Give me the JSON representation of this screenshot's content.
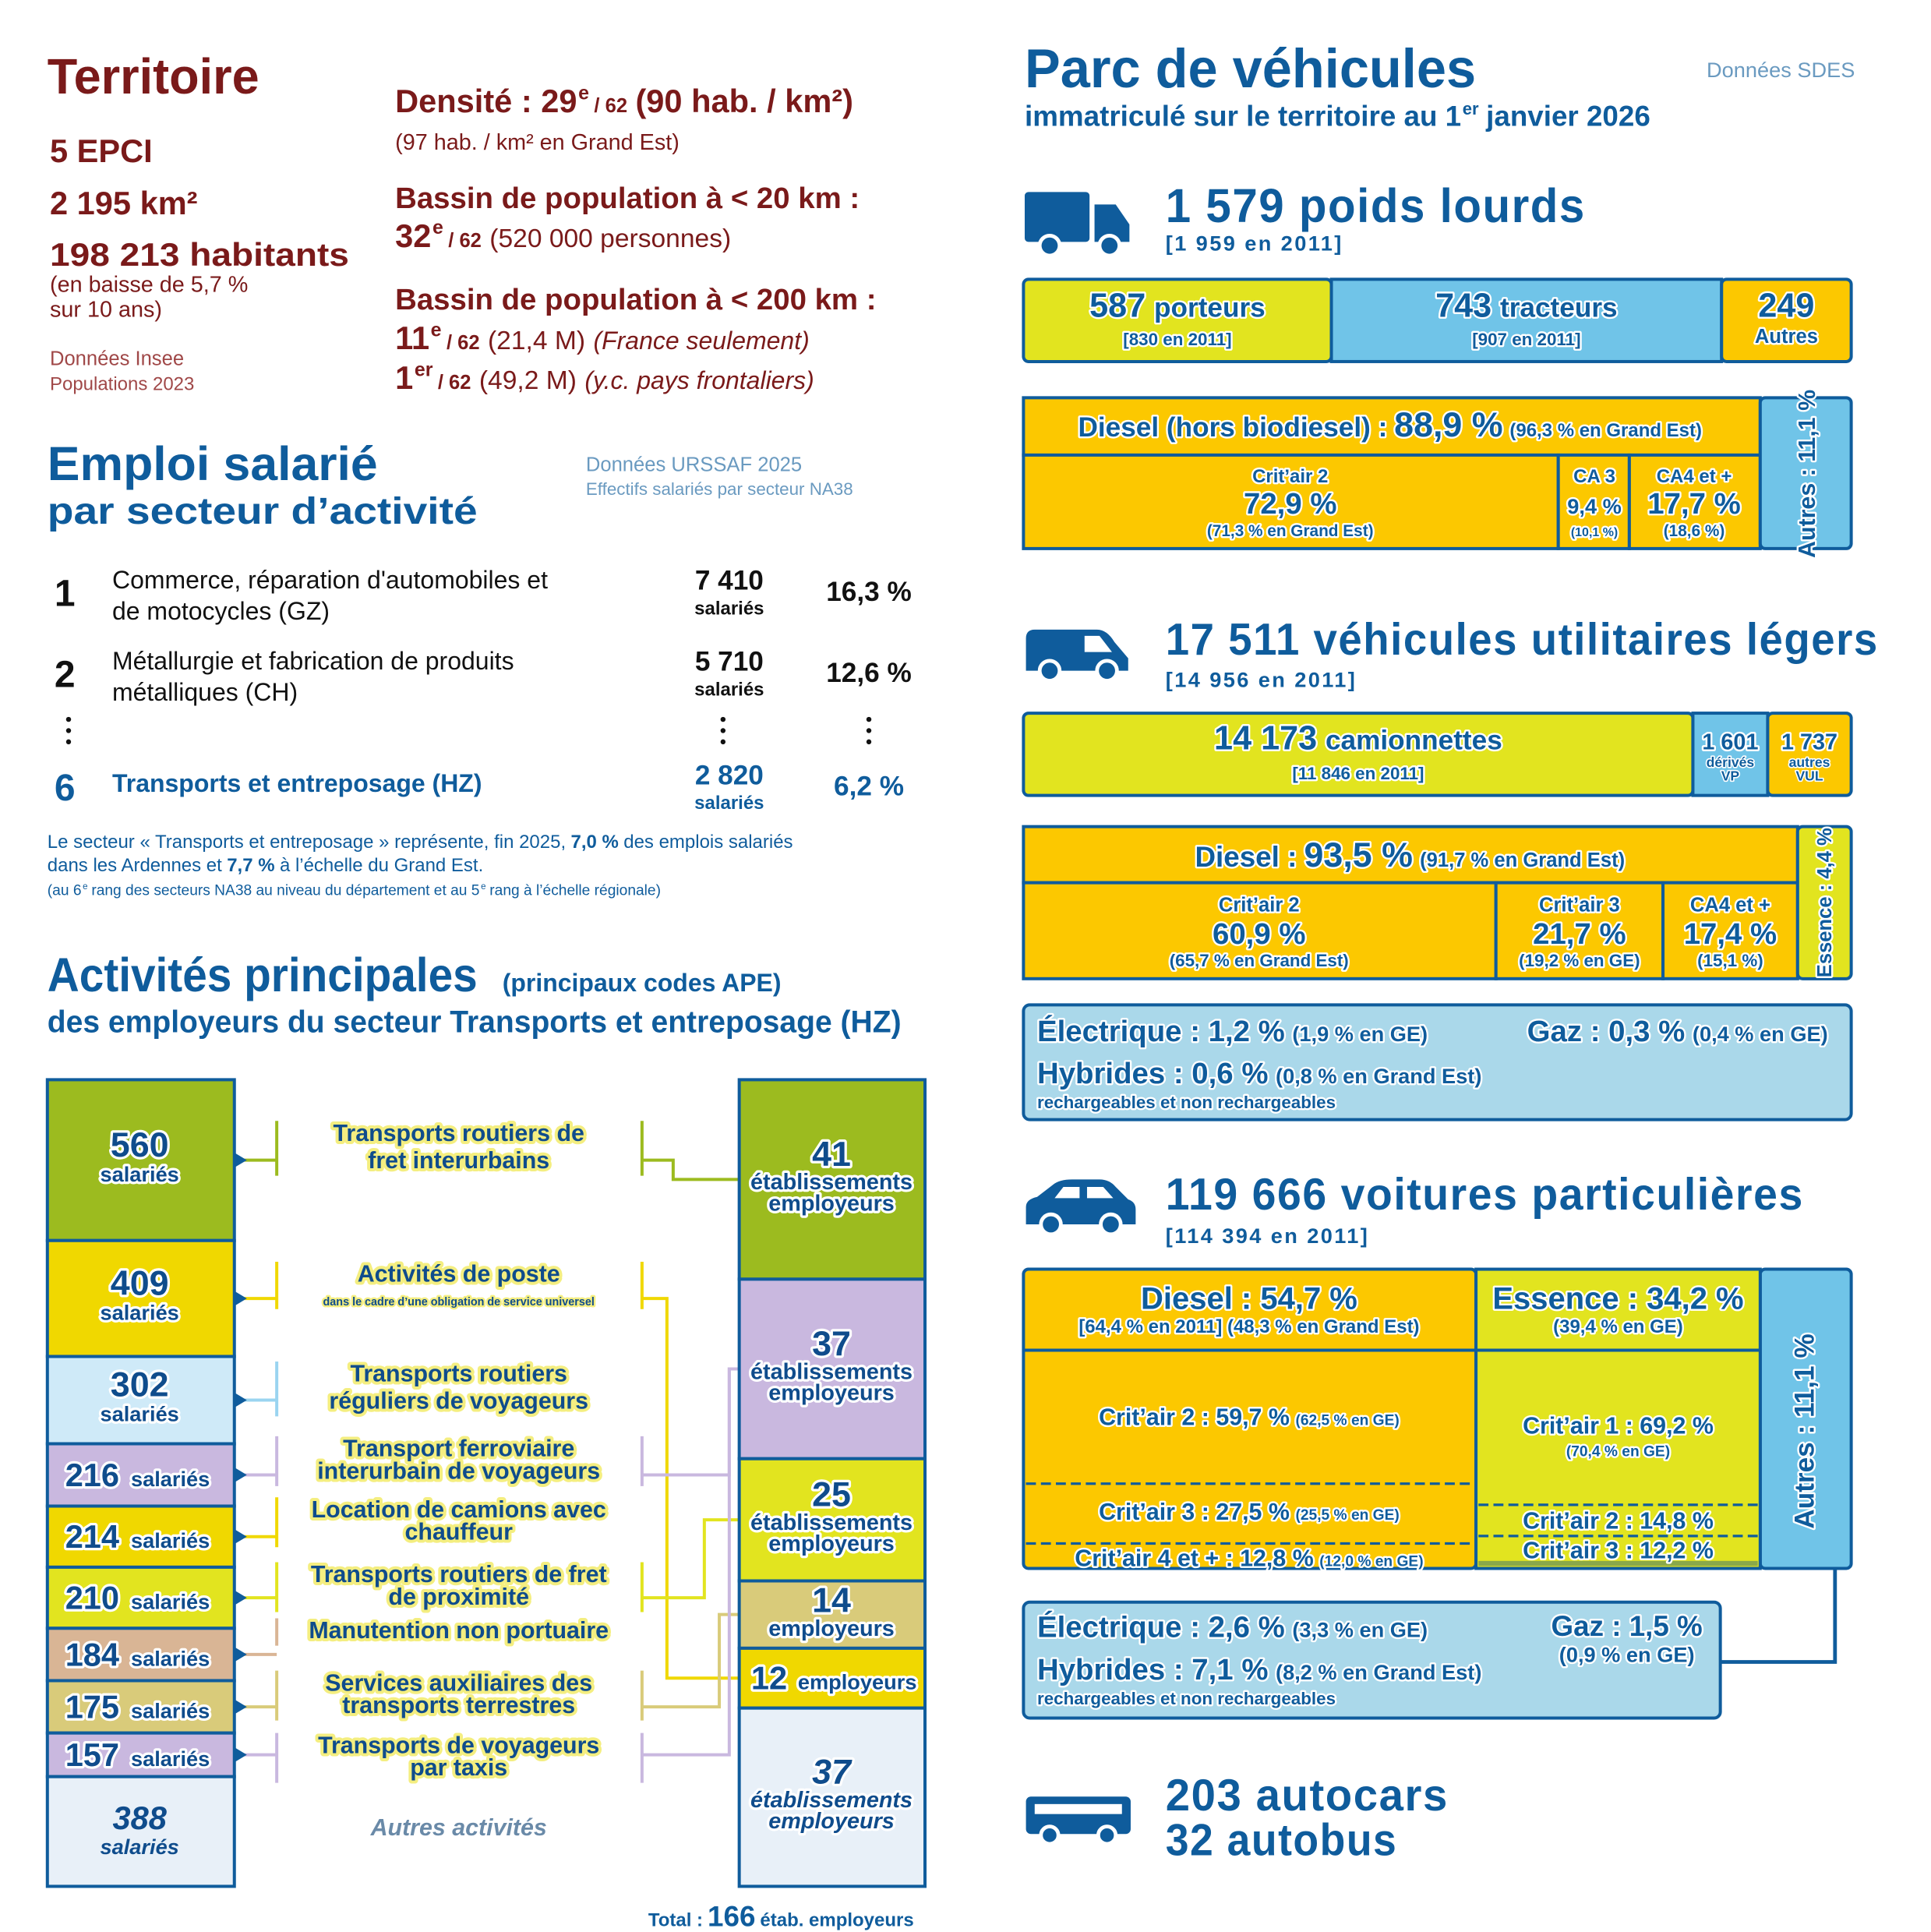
{
  "territoire": {
    "title": "Territoire",
    "epci": "5 EPCI",
    "surface": "2 195 km²",
    "habitants": "198 213 habitants",
    "evolution": [
      "(en baisse de 5,7 %",
      "sur 10 ans)"
    ],
    "source": [
      "Données Insee",
      "Populations 2023"
    ],
    "densite": [
      "Densité : 29",
      "e",
      "/ 62",
      "(90 hab. / km²)"
    ],
    "densite_ge": "(97 hab. / km² en Grand Est)",
    "bassin20": {
      "label": "Bassin de population à < 20 km :",
      "rang": [
        "32",
        "e",
        "/ 62",
        "(520 000 personnes)"
      ]
    },
    "bassin200": {
      "label": "Bassin de population à < 200 km :",
      "rang_fr": [
        "11",
        "e",
        "/ 62",
        "(21,4 M)",
        "(France seulement)"
      ],
      "rang_all": [
        "1",
        "er",
        "/ 62",
        "(49,2 M)",
        "(y.c. pays frontaliers)"
      ]
    }
  },
  "emploi": {
    "title": "Emploi salarié",
    "subtitle": "par secteur d’activité",
    "source": [
      "Données URSSAF 2025",
      "Effectifs salariés par secteur NA38"
    ],
    "rows": [
      {
        "rank": "1",
        "label": [
          "Commerce, réparation d'automobiles et",
          "de motocycles (GZ)"
        ],
        "value": "7 410",
        "unit": "salariés",
        "share": "16,3 %"
      },
      {
        "rank": "2",
        "label": [
          "Métallurgie et fabrication de produits",
          "métalliques (CH)"
        ],
        "value": "5 710",
        "unit": "salariés",
        "share": "12,6 %"
      },
      {
        "rank": "6",
        "label": [
          "Transports et entreposage (HZ)"
        ],
        "value": "2 820",
        "unit": "salariés",
        "share": "6,2 %"
      }
    ],
    "note": [
      [
        "Le secteur « Transports et entreposage » représente, fin 2025,",
        "7,0 %",
        "des emplois salariés"
      ],
      [
        "dans les Ardennes et",
        "7,7 %",
        "à l’échelle du Grand Est."
      ]
    ],
    "note_small": [
      "(au 6",
      "e",
      "rang des secteurs NA38 au niveau du département et au 5",
      "e",
      "rang à l’échelle régionale)"
    ]
  },
  "activites": {
    "title": "Activités principales",
    "title_note": "(principaux codes APE)",
    "subtitle": "des employeurs du secteur Transports et entreposage (HZ)",
    "items": [
      {
        "salaries": "560",
        "unit": "salariés",
        "label": [
          "Transports routiers de",
          "fret interurbains"
        ]
      },
      {
        "salaries": "409",
        "unit": "salariés",
        "label": [
          "Activités de poste"
        ],
        "note": "dans le cadre d’une obligation de service universel"
      },
      {
        "salaries": "302",
        "unit": "salariés",
        "label": [
          "Transports routiers",
          "réguliers de voyageurs"
        ]
      },
      {
        "salaries": "216",
        "unit": "salariés",
        "label": [
          "Transport ferroviaire",
          "interurbain de voyageurs"
        ]
      },
      {
        "salaries": "214",
        "unit": "salariés",
        "label": [
          "Location de camions avec",
          "chauffeur"
        ]
      },
      {
        "salaries": "210",
        "unit": "salariés",
        "label": [
          "Transports routiers de fret",
          "de proximité"
        ]
      },
      {
        "salaries": "184",
        "unit": "salariés",
        "label": [
          "Manutention non portuaire"
        ]
      },
      {
        "salaries": "175",
        "unit": "salariés",
        "label": [
          "Services auxiliaires des",
          "transports terrestres"
        ]
      },
      {
        "salaries": "157",
        "unit": "salariés",
        "label": [
          "Transports de voyageurs",
          "par taxis"
        ]
      }
    ],
    "autres": {
      "salaries": "388",
      "unit": "salariés",
      "label": "Autres activités"
    },
    "etablissements": [
      {
        "value": "41",
        "unit": [
          "établissements",
          "employeurs"
        ]
      },
      {
        "value": "37",
        "unit": [
          "établissements",
          "employeurs"
        ]
      },
      {
        "value": "25",
        "unit": [
          "établissements",
          "employeurs"
        ]
      },
      {
        "value": "14",
        "unit": [
          "employeurs"
        ]
      },
      {
        "value": "12",
        "unit": [
          "employeurs"
        ]
      },
      {
        "value": "37",
        "unit": [
          "établissements",
          "employeurs"
        ]
      }
    ],
    "total": [
      "Total :",
      "166",
      "étab. employeurs"
    ]
  },
  "parc": {
    "title": "Parc de véhicules",
    "subtitle": [
      "immatriculé sur le territoire au 1",
      "er",
      "janvier 2026"
    ],
    "source": "Données SDES",
    "pl": {
      "title": "1 579 poids lourds",
      "ref": "[1 959 en 2011]",
      "split": [
        {
          "value": "587",
          "label": "porteurs",
          "ref": "[830 en 2011]"
        },
        {
          "value": "743",
          "label": "tracteurs",
          "ref": "[907 en 2011]"
        },
        {
          "value": "249",
          "label": "Autres"
        }
      ],
      "diesel": [
        "Diesel (hors biodiesel) :",
        "88,9 %",
        "(96,3 % en Grand Est)"
      ],
      "autres": "Autres : 11,1 %",
      "critair": [
        {
          "label": "Crit’air 2",
          "value": "72,9 %",
          "ref": "(71,3 % en Grand Est)"
        },
        {
          "label": "CA 3",
          "value": "9,4 %",
          "ref": "(10,1 %)"
        },
        {
          "label": "CA4 et +",
          "value": "17,7 %",
          "ref": "(18,6 %)"
        }
      ]
    },
    "vul": {
      "title": "17 511 véhicules utilitaires légers",
      "ref": "[14 956 en 2011]",
      "split": [
        {
          "value": "14 173",
          "label": [
            "camionnettes"
          ],
          "ref": "[11 846 en 2011]"
        },
        {
          "value": "1 601",
          "label": [
            "dérivés",
            "VP"
          ]
        },
        {
          "value": "1 737",
          "label": [
            "autres",
            "VUL"
          ]
        }
      ],
      "diesel": [
        "Diesel :",
        "93,5 %",
        "(91,7 % en Grand Est)"
      ],
      "autres": "Essence : 4,4 %",
      "critair": [
        {
          "label": "Crit’air 2",
          "value": "60,9 %",
          "ref": "(65,7 % en Grand Est)"
        },
        {
          "label": "Crit’air 3",
          "value": "21,7 %",
          "ref": "(19,2 % en GE)"
        },
        {
          "label": "CA4 et +",
          "value": "17,4 %",
          "ref": "(15,1 %)"
        }
      ],
      "electrique": [
        "Électrique : 1,2 %",
        "(1,9 % en GE)"
      ],
      "gaz": [
        "Gaz : 0,3 %",
        "(0,4 % en GE)"
      ],
      "hybrides": [
        "Hybrides : 0,6 %",
        "(0,8 % en Grand Est)"
      ],
      "hybrides_note": "rechargeables et non rechargeables"
    },
    "vp": {
      "title": "119 666 voitures particulières",
      "ref": "[114 394 en 2011]",
      "diesel": [
        "Diesel : 54,7 %",
        "[64,4 % en 2011]  (48,3 % en Grand Est)"
      ],
      "essence": [
        "Essence : 34,2 %",
        "(39,4 % en GE)"
      ],
      "autres": "Autres : 11,1 %",
      "diesel_critair": [
        [
          "Crit’air 2 : 59,7 %",
          "(62,5 % en GE)"
        ],
        [
          "Crit’air 3 : 27,5 %",
          "(25,5 % en GE)"
        ],
        [
          "Crit’air 4 et + : 12,8 %",
          "(12,0 % en GE)"
        ]
      ],
      "essence_critair": [
        [
          "Crit’air 1 : 69,2 %",
          "(70,4 % en GE)"
        ],
        [
          "Crit’air 2 : 14,8 %"
        ],
        [
          "Crit’air 3 : 12,2 %"
        ]
      ],
      "electrique": [
        "Électrique : 2,6 %",
        "(3,3 % en GE)"
      ],
      "gaz": [
        "Gaz : 1,5 %",
        "(0,9 % en GE)"
      ],
      "hybrides": [
        "Hybrides : 7,1 %",
        "(8,2 % en Grand Est)"
      ],
      "hybrides_note": "rechargeables et non rechargeables"
    },
    "cars": [
      "203 autocars",
      "32 autobus"
    ]
  }
}
